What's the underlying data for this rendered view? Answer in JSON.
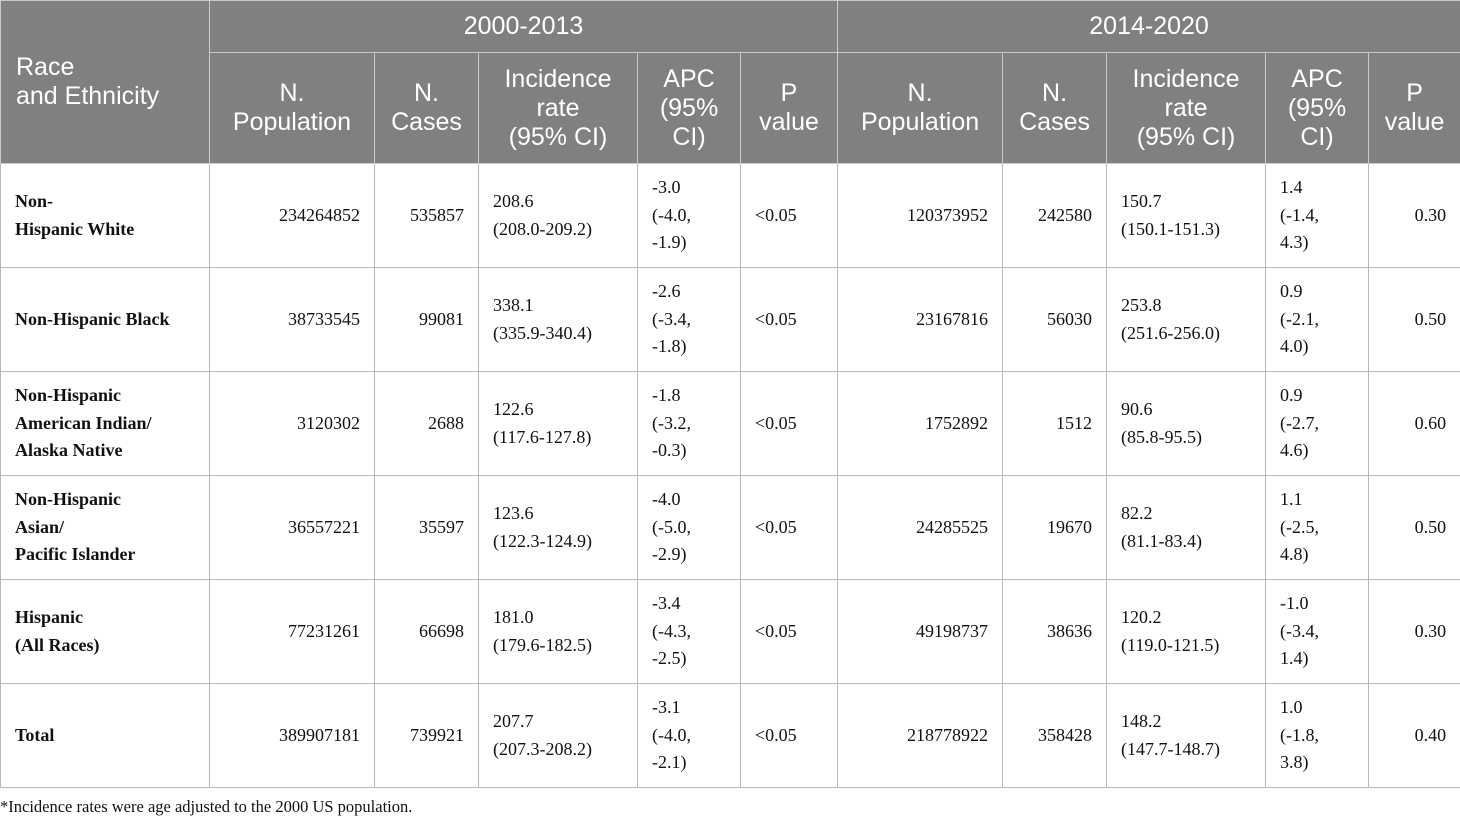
{
  "table": {
    "race_header": "Race\nand Ethnicity",
    "periods": [
      "2000-2013",
      "2014-2020"
    ],
    "columns": [
      "N.\nPopulation",
      "N.\nCases",
      "Incidence\nrate\n(95% CI)",
      "APC\n(95%\nCI)",
      "P\nvalue"
    ],
    "rows": [
      {
        "race": "Non-\nHispanic White",
        "p1": [
          "234264852",
          "535857",
          "208.6\n(208.0-209.2)",
          "-3.0\n(-4.0,\n-1.9)",
          "<0.05"
        ],
        "p2": [
          "120373952",
          "242580",
          "150.7\n(150.1-151.3)",
          "1.4\n(-1.4,\n4.3)",
          "0.30"
        ]
      },
      {
        "race": "Non-Hispanic Black",
        "p1": [
          "38733545",
          "99081",
          "338.1\n(335.9-340.4)",
          "-2.6\n(-3.4,\n-1.8)",
          "<0.05"
        ],
        "p2": [
          "23167816",
          "56030",
          "253.8\n(251.6-256.0)",
          "0.9\n(-2.1,\n4.0)",
          "0.50"
        ]
      },
      {
        "race": "Non-Hispanic\nAmerican Indian/\nAlaska Native",
        "p1": [
          "3120302",
          "2688",
          "122.6\n(117.6-127.8)",
          "-1.8\n(-3.2,\n-0.3)",
          "<0.05"
        ],
        "p2": [
          "1752892",
          "1512",
          "90.6\n(85.8-95.5)",
          "0.9\n(-2.7,\n4.6)",
          "0.60"
        ]
      },
      {
        "race": "Non-Hispanic\nAsian/\nPacific Islander",
        "p1": [
          "36557221",
          "35597",
          "123.6\n(122.3-124.9)",
          "-4.0\n(-5.0,\n-2.9)",
          "<0.05"
        ],
        "p2": [
          "24285525",
          "19670",
          "82.2\n(81.1-83.4)",
          "1.1\n(-2.5,\n4.8)",
          "0.50"
        ]
      },
      {
        "race": "Hispanic\n(All Races)",
        "p1": [
          "77231261",
          "66698",
          "181.0\n(179.6-182.5)",
          "-3.4\n(-4.3,\n-2.5)",
          "<0.05"
        ],
        "p2": [
          "49198737",
          "38636",
          "120.2\n(119.0-121.5)",
          "-1.0\n(-3.4,\n1.4)",
          "0.30"
        ]
      },
      {
        "race": "Total",
        "p1": [
          "389907181",
          "739921",
          "207.7\n(207.3-208.2)",
          "-3.1\n(-4.0,\n-2.1)",
          "<0.05"
        ],
        "p2": [
          "218778922",
          "358428",
          "148.2\n(147.7-148.7)",
          "1.0\n(-1.8,\n3.8)",
          "0.40"
        ]
      }
    ]
  },
  "footnote": "*Incidence rates were age adjusted to the 2000 US population."
}
